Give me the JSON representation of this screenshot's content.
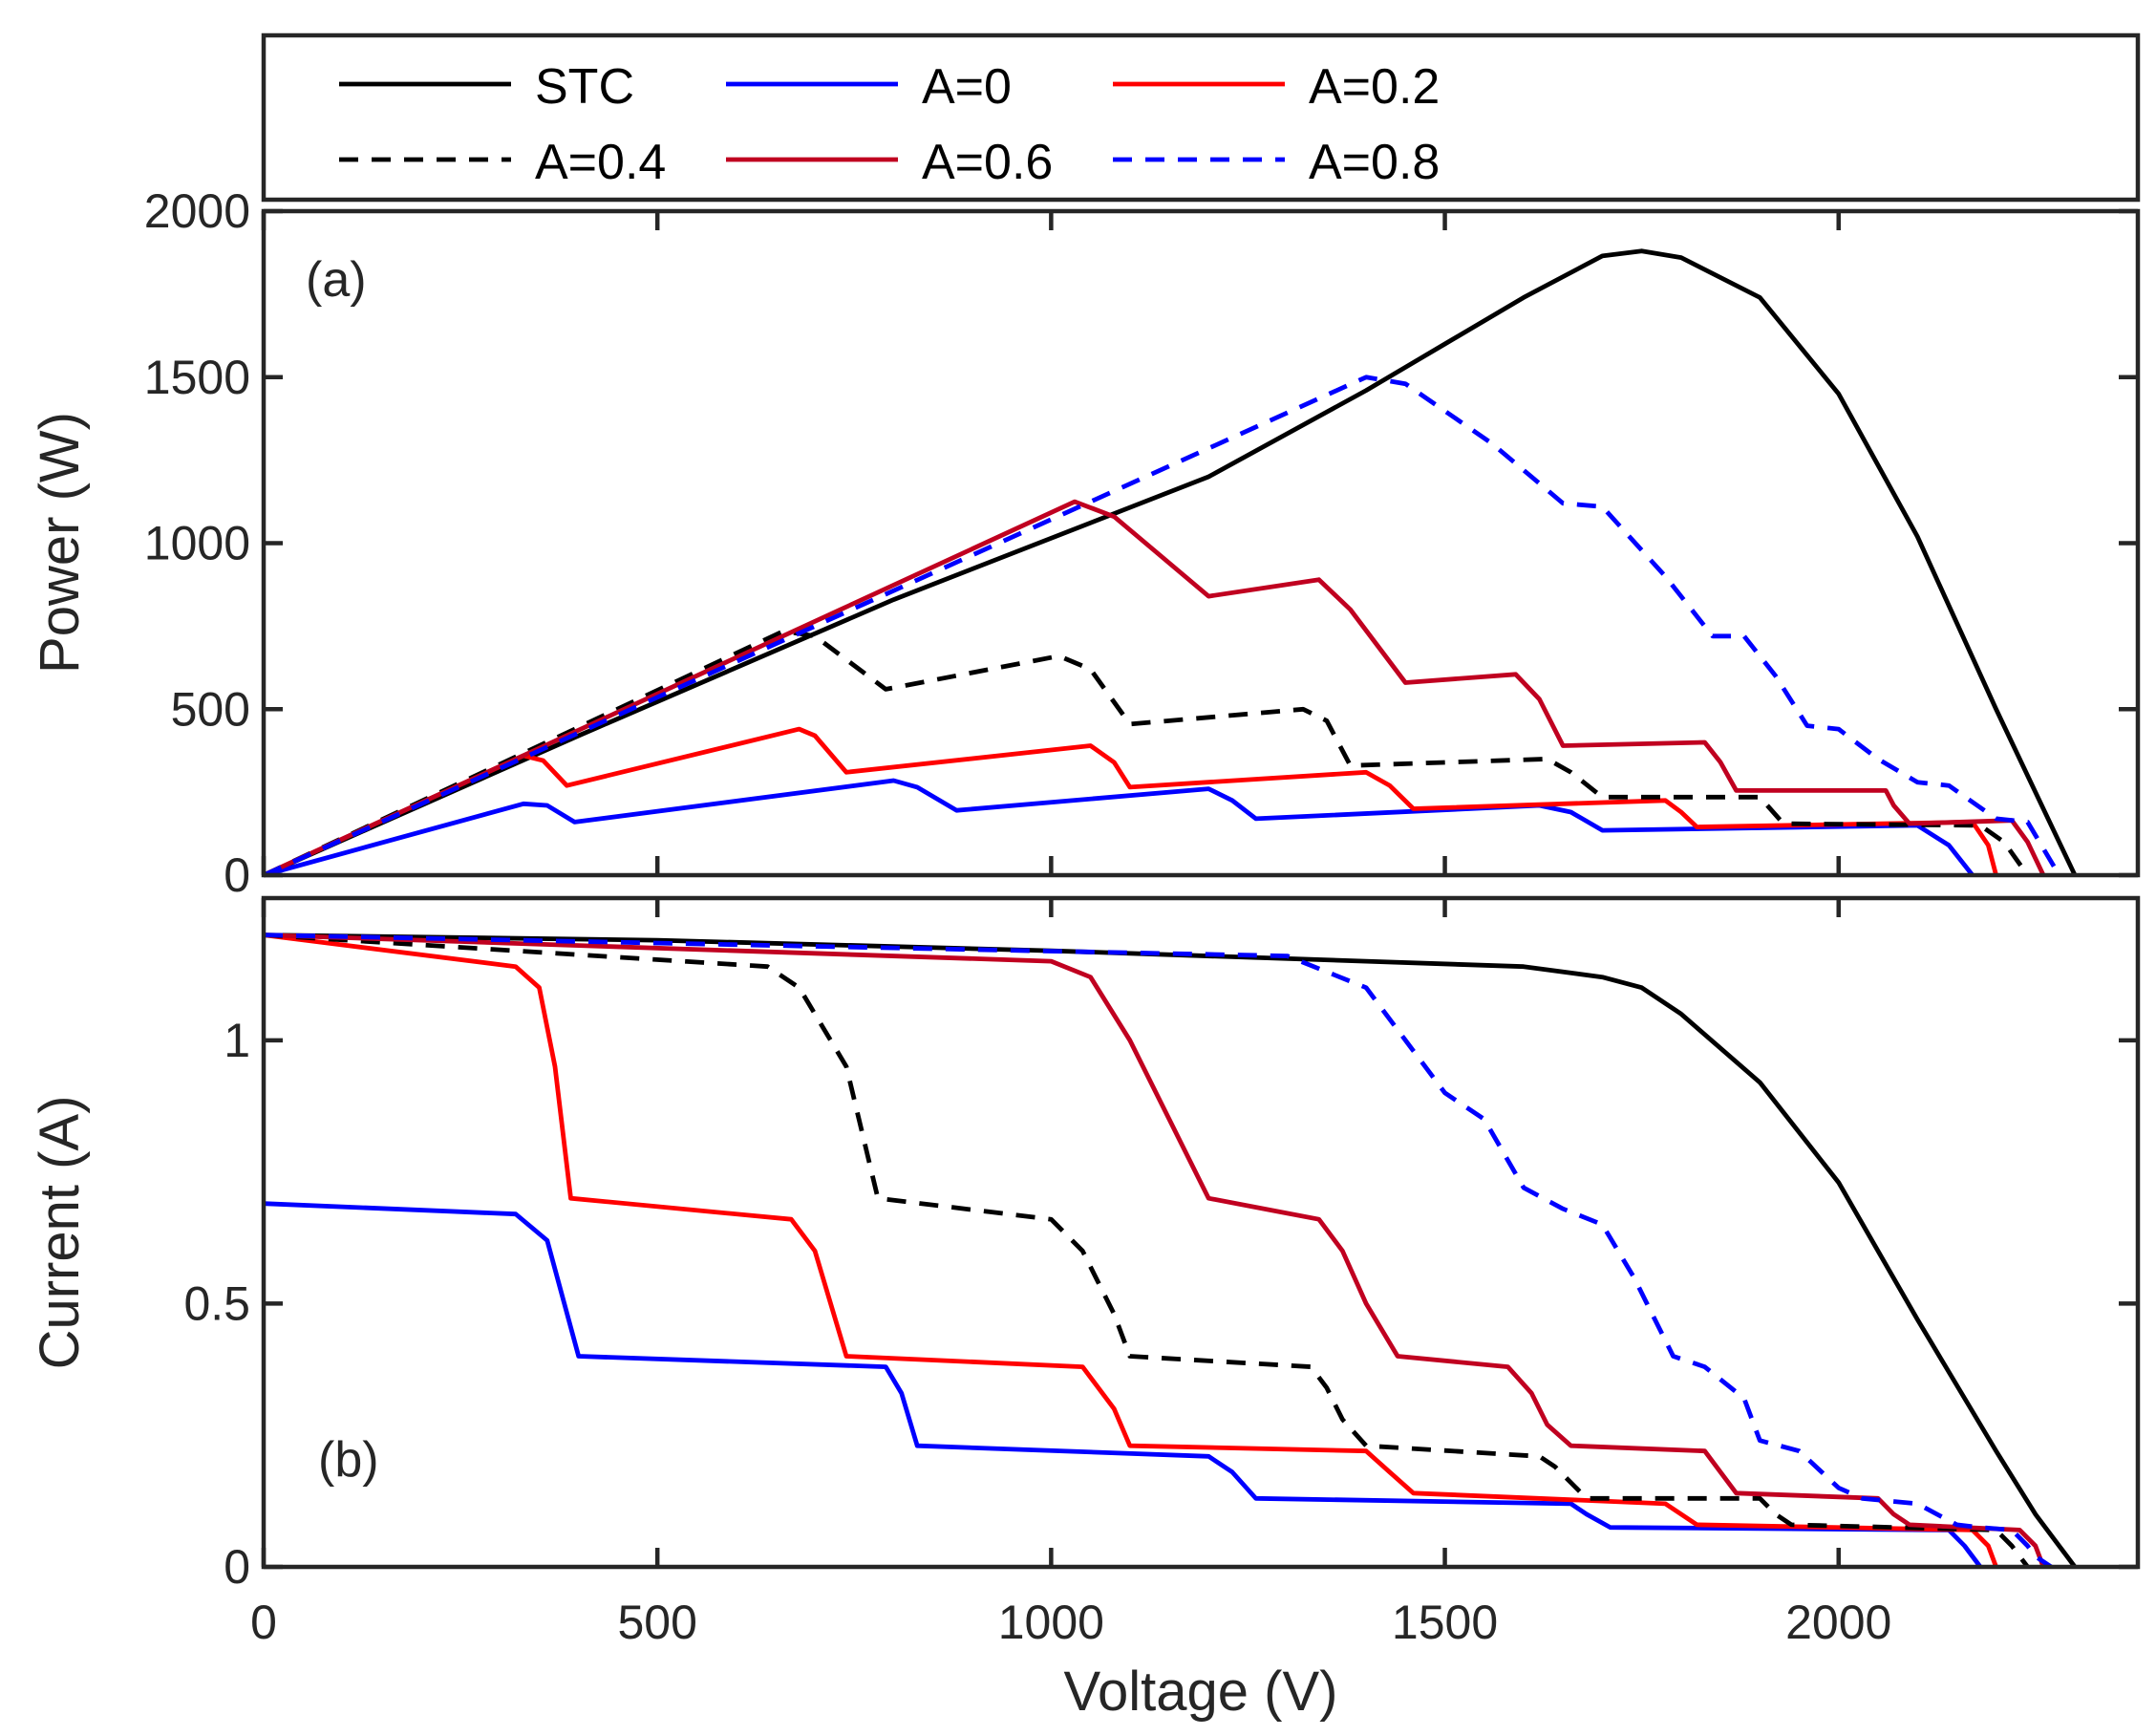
{
  "chart_data": [
    {
      "id": "a",
      "type": "line",
      "panel_label": "(a)",
      "xlabel": "Voltage (V)",
      "ylabel": "Power (W)",
      "xlim": [
        0,
        2380
      ],
      "ylim": [
        0,
        2000
      ],
      "xticks": [
        0,
        500,
        1000,
        1500,
        2000
      ],
      "yticks": [
        0,
        500,
        1000,
        1500,
        2000
      ],
      "ytick_labels": [
        "0",
        "500",
        "1000",
        "1500",
        "2000"
      ],
      "grid": false,
      "series": [
        {
          "name": "STC",
          "color": "#000000",
          "dash": "solid",
          "x": [
            0,
            400,
            800,
            1200,
            1400,
            1500,
            1600,
            1700,
            1750,
            1800,
            1900,
            2000,
            2100,
            2200,
            2250,
            2300
          ],
          "y": [
            0,
            420,
            830,
            1200,
            1460,
            1600,
            1740,
            1865,
            1880,
            1860,
            1740,
            1450,
            1020,
            500,
            250,
            0
          ]
        },
        {
          "name": "A=0",
          "color": "#0000ff",
          "dash": "solid",
          "x": [
            0,
            330,
            360,
            395,
            800,
            830,
            880,
            1200,
            1230,
            1260,
            1620,
            1660,
            1700,
            2100,
            2140,
            2170
          ],
          "y": [
            0,
            215,
            210,
            160,
            285,
            265,
            195,
            260,
            225,
            170,
            210,
            190,
            135,
            150,
            90,
            0
          ]
        },
        {
          "name": "A=0.2",
          "color": "#ff0000",
          "dash": "solid",
          "x": [
            0,
            330,
            355,
            385,
            680,
            700,
            740,
            1050,
            1080,
            1100,
            1400,
            1430,
            1460,
            1780,
            1800,
            1820,
            2170,
            2190,
            2200
          ],
          "y": [
            0,
            360,
            345,
            270,
            440,
            420,
            310,
            390,
            340,
            265,
            310,
            270,
            200,
            225,
            190,
            145,
            160,
            90,
            0
          ]
        },
        {
          "name": "A=0.4",
          "color": "#000000",
          "dash": "dashed",
          "x": [
            0,
            660,
            700,
            790,
            1010,
            1050,
            1100,
            1320,
            1350,
            1380,
            1630,
            1660,
            1700,
            1900,
            1930,
            2180,
            2210,
            2240
          ],
          "y": [
            0,
            735,
            720,
            560,
            660,
            620,
            455,
            500,
            465,
            330,
            350,
            310,
            235,
            235,
            155,
            150,
            100,
            0
          ]
        },
        {
          "name": "A=0.6",
          "color": "#c00020",
          "dash": "solid",
          "x": [
            0,
            1030,
            1080,
            1200,
            1340,
            1380,
            1450,
            1590,
            1620,
            1650,
            1830,
            1850,
            1870,
            2060,
            2070,
            2090,
            2220,
            2240,
            2260
          ],
          "y": [
            0,
            1125,
            1080,
            840,
            890,
            800,
            580,
            605,
            530,
            390,
            400,
            340,
            255,
            255,
            210,
            155,
            165,
            100,
            0
          ]
        },
        {
          "name": "A=0.8",
          "color": "#0000ff",
          "dash": "dashed",
          "x": [
            0,
            1400,
            1450,
            1560,
            1650,
            1700,
            1780,
            1840,
            1880,
            1920,
            1960,
            2000,
            2050,
            2100,
            2140,
            2200,
            2240,
            2280
          ],
          "y": [
            0,
            1500,
            1480,
            1300,
            1120,
            1110,
            900,
            720,
            720,
            600,
            450,
            440,
            350,
            280,
            270,
            170,
            160,
            0
          ]
        }
      ]
    },
    {
      "id": "b",
      "type": "line",
      "panel_label": "(b)",
      "xlabel": "Voltage (V)",
      "ylabel": "Current (A)",
      "xlim": [
        0,
        2380
      ],
      "ylim": [
        0,
        1.27
      ],
      "xticks": [
        0,
        500,
        1000,
        1500,
        2000
      ],
      "xtick_labels": [
        "0",
        "500",
        "1000",
        "1500",
        "2000"
      ],
      "yticks": [
        0,
        0.5,
        1
      ],
      "ytick_labels": [
        "0",
        "0.5",
        "1"
      ],
      "grid": false,
      "series": [
        {
          "name": "STC",
          "color": "#000000",
          "dash": "solid",
          "x": [
            0,
            500,
            1000,
            1400,
            1600,
            1700,
            1750,
            1800,
            1900,
            2000,
            2100,
            2200,
            2250,
            2300
          ],
          "y": [
            1.2,
            1.19,
            1.17,
            1.15,
            1.14,
            1.12,
            1.1,
            1.05,
            0.92,
            0.73,
            0.47,
            0.22,
            0.1,
            0
          ]
        },
        {
          "name": "A=0",
          "color": "#0000ff",
          "dash": "solid",
          "x": [
            0,
            320,
            360,
            400,
            790,
            810,
            830,
            1200,
            1230,
            1260,
            1660,
            1680,
            1710,
            2140,
            2160,
            2180
          ],
          "y": [
            0.69,
            0.67,
            0.62,
            0.4,
            0.38,
            0.33,
            0.23,
            0.21,
            0.18,
            0.13,
            0.12,
            0.1,
            0.075,
            0.07,
            0.04,
            0
          ]
        },
        {
          "name": "A=0.2",
          "color": "#ff0000",
          "dash": "solid",
          "x": [
            0,
            320,
            350,
            370,
            390,
            670,
            700,
            740,
            1040,
            1080,
            1100,
            1400,
            1430,
            1460,
            1780,
            1800,
            1820,
            2170,
            2190,
            2200
          ],
          "y": [
            1.2,
            1.14,
            1.1,
            0.95,
            0.7,
            0.66,
            0.6,
            0.4,
            0.38,
            0.3,
            0.23,
            0.22,
            0.18,
            0.14,
            0.12,
            0.1,
            0.08,
            0.07,
            0.04,
            0
          ]
        },
        {
          "name": "A=0.4",
          "color": "#000000",
          "dash": "dashed",
          "x": [
            0,
            640,
            680,
            740,
            780,
            1000,
            1040,
            1080,
            1100,
            1330,
            1350,
            1370,
            1400,
            1620,
            1640,
            1660,
            1680,
            1900,
            1920,
            1940,
            2200,
            2220,
            2240
          ],
          "y": [
            1.2,
            1.14,
            1.1,
            0.95,
            0.7,
            0.66,
            0.6,
            0.48,
            0.4,
            0.38,
            0.34,
            0.28,
            0.23,
            0.21,
            0.19,
            0.16,
            0.13,
            0.13,
            0.1,
            0.08,
            0.07,
            0.04,
            0
          ]
        },
        {
          "name": "A=0.6",
          "color": "#c00020",
          "dash": "solid",
          "x": [
            0,
            1000,
            1050,
            1100,
            1200,
            1340,
            1370,
            1400,
            1440,
            1580,
            1610,
            1630,
            1660,
            1830,
            1850,
            1870,
            2050,
            2070,
            2090,
            2230,
            2250,
            2260
          ],
          "y": [
            1.2,
            1.15,
            1.12,
            1.0,
            0.7,
            0.66,
            0.6,
            0.5,
            0.4,
            0.38,
            0.33,
            0.27,
            0.23,
            0.22,
            0.18,
            0.14,
            0.13,
            0.1,
            0.08,
            0.07,
            0.04,
            0
          ]
        },
        {
          "name": "A=0.8",
          "color": "#0000ff",
          "dash": "dashed",
          "x": [
            0,
            1300,
            1400,
            1450,
            1500,
            1550,
            1600,
            1650,
            1700,
            1740,
            1790,
            1830,
            1880,
            1900,
            1950,
            2000,
            2030,
            2100,
            2150,
            2180,
            2220,
            2240,
            2250,
            2270
          ],
          "y": [
            1.2,
            1.16,
            1.1,
            1.0,
            0.9,
            0.85,
            0.72,
            0.68,
            0.65,
            0.55,
            0.4,
            0.38,
            0.32,
            0.24,
            0.22,
            0.15,
            0.13,
            0.12,
            0.08,
            0.075,
            0.07,
            0.04,
            0.02,
            0
          ]
        }
      ]
    }
  ]
}
